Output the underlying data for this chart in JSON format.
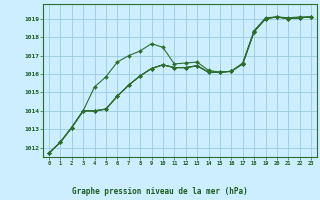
{
  "title": "Graphe pression niveau de la mer (hPa)",
  "background_color": "#cceeff",
  "grid_color": "#99ccdd",
  "line_color": "#2d6e2d",
  "xlim": [
    -0.5,
    23.5
  ],
  "ylim": [
    1011.5,
    1019.8
  ],
  "yticks": [
    1012,
    1013,
    1014,
    1015,
    1016,
    1017,
    1018,
    1019
  ],
  "xticks": [
    0,
    1,
    2,
    3,
    4,
    5,
    6,
    7,
    8,
    9,
    10,
    11,
    12,
    13,
    14,
    15,
    16,
    17,
    18,
    19,
    20,
    21,
    22,
    23
  ],
  "s1": [
    1011.7,
    1012.3,
    1013.1,
    1014.0,
    1015.3,
    1015.85,
    1016.65,
    1017.0,
    1017.25,
    1017.65,
    1017.45,
    1016.55,
    1016.6,
    1016.65,
    1016.2,
    1016.1,
    1016.15,
    1016.6,
    1018.35,
    1019.05,
    1019.1,
    1019.05,
    1019.1,
    1019.1
  ],
  "s2": [
    1011.7,
    1012.3,
    1013.1,
    1014.0,
    1014.0,
    1014.1,
    1014.8,
    1015.4,
    1015.9,
    1016.3,
    1016.5,
    1016.35,
    1016.35,
    1016.45,
    1016.1,
    1016.1,
    1016.15,
    1016.55,
    1018.3,
    1019.0,
    1019.1,
    1019.0,
    1019.05,
    1019.1
  ],
  "s3": [
    1011.7,
    1012.3,
    1013.1,
    1014.0,
    1014.0,
    1014.1,
    1014.8,
    1015.4,
    1015.9,
    1016.3,
    1016.5,
    1016.35,
    1016.35,
    1016.45,
    1016.1,
    1016.1,
    1016.15,
    1016.55,
    1018.3,
    1019.0,
    1019.1,
    1019.0,
    1019.05,
    1019.1
  ],
  "s4": [
    1011.7,
    1012.3,
    1013.1,
    1014.0,
    1014.0,
    1014.1,
    1014.8,
    1015.4,
    1015.9,
    1016.3,
    1016.5,
    1016.35,
    1016.35,
    1016.45,
    1016.1,
    1016.1,
    1016.15,
    1016.55,
    1018.3,
    1019.0,
    1019.1,
    1019.0,
    1019.05,
    1019.1
  ]
}
